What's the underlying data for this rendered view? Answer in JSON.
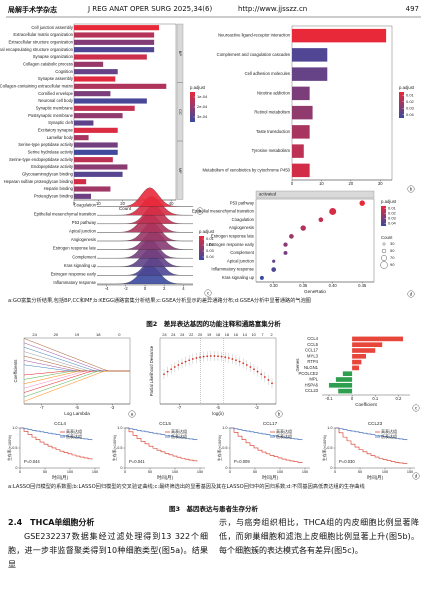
{
  "header": {
    "journal": "局解手术学杂志",
    "meta": "J REG ANAT OPER SURG  2025,34(6)",
    "url": "http://www.jjsszz.cn",
    "page": "497"
  },
  "figure2": {
    "a": {
      "type": "bar",
      "panel": "a",
      "categories": [
        "Cell junction assembly",
        "Extracellular matrix organization",
        "Extracellular structure organization",
        "External encapsulating structure organization",
        "Synapse organization",
        "Collagen catabolic process",
        "Cognition",
        "Synapse assembly",
        "Collagen-containing extracellular matrix",
        "Cornified envelope",
        "Neuronal cell body",
        "Synaptic membrane",
        "Postsynaptic membrane",
        "Synaptic cleft",
        "Excitatory synapse",
        "Lamellar body",
        "Serine-type peptidase activity",
        "Serine hydrolase activity",
        "Serine-type endopeptidase activity",
        "Endopeptidase activity",
        "Glycosaminoglycan binding",
        "Heparan sulfate proteoglycan binding",
        "Heparin binding",
        "Proteoglycan binding"
      ],
      "values": [
        35,
        33,
        33,
        33,
        30,
        12,
        18,
        17,
        38,
        15,
        30,
        25,
        20,
        8,
        18,
        6,
        18,
        18,
        16,
        22,
        20,
        5,
        15,
        7
      ],
      "groups": [
        "BP",
        "CC",
        "MF"
      ],
      "xlabel": "Count",
      "xlim": [
        0,
        42
      ],
      "xticks": [
        0,
        10,
        20,
        30,
        40
      ],
      "legend_title": "p.adjust",
      "legend_ticks": [
        {
          "value": 0.0001,
          "label": "1e-04"
        },
        {
          "value": 0.0002,
          "label": "2e-04"
        },
        {
          "value": 0.0003,
          "label": "3e-04"
        }
      ],
      "color_scale": [
        "#e8293a",
        "#3a4aa0"
      ]
    },
    "b": {
      "type": "bar",
      "panel": "b",
      "categories": [
        "Neuroactive ligand-receptor interaction",
        "Complement and coagulation cascades",
        "Cell adhesion molecules",
        "Nicotine addiction",
        "Retinol metabolism",
        "Taste transduction",
        "Tyrosine metabolism",
        "Metabolism of xenobiotics by cytochrome P450"
      ],
      "values": [
        32,
        12,
        12,
        6,
        7,
        6,
        4,
        6
      ],
      "xlim": [
        0,
        34
      ],
      "xticks": [
        0,
        10,
        20,
        30
      ],
      "legend_title": "p.adjust",
      "legend_ticks": [
        0.01,
        0.02,
        0.03,
        0.04
      ],
      "color_scale": [
        "#e8293a",
        "#3a4aa0"
      ]
    },
    "c": {
      "type": "ridge",
      "panel": "c",
      "categories": [
        "Coagulation",
        "Epithelial mesenchymal transition",
        "P53 pathway",
        "Apical junction",
        "Angiogenesis",
        "Estrogen response late",
        "Complement",
        "Kras signaling up",
        "Estrogen response early",
        "Inflammatory response"
      ],
      "xlim": [
        -5,
        5
      ],
      "xticks": [
        -4,
        -2,
        0,
        2,
        4
      ],
      "legend_title": "p.adjust",
      "legend_ticks": [
        0.01,
        0.02,
        0.03,
        0.04
      ],
      "color_scale": [
        "#e8293a",
        "#3a4aa0"
      ]
    },
    "d": {
      "type": "dot",
      "panel": "d",
      "header": "activated",
      "categories": [
        "P53 pathway",
        "Epithelial mesenchymal transition",
        "Coagulation",
        "Angiogenesis",
        "Estrogen response late",
        "Estrogen response early",
        "Complement",
        "Apical junction",
        "Inflammatory response",
        "Kras signaling up"
      ],
      "values": [
        0.45,
        0.4,
        0.38,
        0.35,
        0.33,
        0.32,
        0.32,
        0.3,
        0.3,
        0.28
      ],
      "counts": [
        70,
        90,
        60,
        70,
        60,
        55,
        50,
        40,
        60,
        50
      ],
      "xlabel": "GeneRatio",
      "xlim": [
        0.27,
        0.47
      ],
      "xticks": [
        {
          "value": 0.3,
          "label": "0.30"
        },
        0.35,
        {
          "value": 0.4,
          "label": "0.40"
        },
        0.45
      ],
      "legend_title": "p.adjust",
      "legend_ticks": [
        0.01,
        0.02,
        0.03,
        0.04
      ],
      "size_title": "Count",
      "size_ticks": [
        30,
        50,
        70,
        90
      ],
      "color_scale": [
        "#e8293a",
        "#3a4aa0"
      ]
    },
    "note": "a:GO富集分析结果,包括BP,CC和MF;b:KEGG通路富集分析结果;c:GSEA分析显示的差异通路分布;d:GSEA分析中显著通路的气泡图",
    "caption": "图2　差异表达基因的功能注释和通路富集分析"
  },
  "figure3": {
    "a": {
      "type": "lasso",
      "panel": "a",
      "top_labels": [
        24,
        20,
        19,
        18,
        0
      ],
      "xlabel": "Log Lambda",
      "ylabel": "Coefficients",
      "xlim": [
        -8,
        -2
      ],
      "xticks": [
        -7,
        -5,
        -3
      ]
    },
    "b": {
      "type": "cv",
      "panel": "b",
      "top_labels": [
        24,
        24,
        24,
        22,
        20,
        19,
        18,
        18,
        16,
        14,
        10,
        7,
        2
      ],
      "xlabel": "log(λ)",
      "ylabel": "Partial Likelihood Deviance",
      "xlim": [
        -8,
        -2
      ],
      "xticks": [
        -7,
        -5,
        -3
      ]
    },
    "c": {
      "type": "coef",
      "panel": "c",
      "categories": [
        "CCL4",
        "CCL5",
        "CCL17",
        "MYL3",
        "RTP4",
        "NLGN1",
        "PCOLCE2",
        "MPL",
        "HSPA6",
        "CCL23"
      ],
      "values": [
        0.22,
        0.13,
        0.1,
        0.06,
        0.04,
        0.03,
        -0.04,
        -0.07,
        -0.1,
        -0.06
      ],
      "xlabel": "Coefficient",
      "ylabel": "Genes",
      "xlim": [
        -0.13,
        0.25
      ],
      "xticks": [
        -0.1,
        0,
        0.1,
        0.2
      ],
      "color_positive": "#e8463a",
      "color_negative": "#2e9e4f"
    },
    "d": {
      "type": "km",
      "panel": "d",
      "plots": [
        {
          "gene": "CCL4",
          "p": "P=0.044"
        },
        {
          "gene": "CCL5",
          "p": "P=0.041"
        },
        {
          "gene": "CCL17",
          "p": "P=0.009"
        },
        {
          "gene": "CCL23",
          "p": "P=0.030"
        }
      ],
      "legend": [
        "高表达组",
        "低表达组"
      ],
      "colors": [
        "#d7301f",
        "#2b5fb0"
      ],
      "xlabel": "时间(月)",
      "ylabel": "生存率(×100%)",
      "xlim": [
        0,
        160
      ],
      "xticks": [
        0,
        50,
        100,
        150
      ],
      "ylim": [
        0,
        1
      ],
      "yticks": [
        0,
        0.5,
        {
          "value": 1,
          "label": "1.0"
        }
      ]
    },
    "note": "a:LASSO回归模型的系数图;b:LASSO回归模型的交叉验证曲线;c:最终筛选出的显著基因及其在LASSO回归中的回归系数;d:不同基因高低表达组的生存曲线",
    "caption": "图3　基因表达与患者生存分析"
  },
  "body": {
    "section": "2.4　THCA单细胞分析",
    "left": "GSE232237数据集经过滤处理得到13 322个细胞，进一步非监督聚类得到10种细胞类型(图5a)。结果显",
    "right": "示，与癌旁组织相比，THCA组的内皮细胞比例显著降低，而卵巢细胞和滤泡上皮细胞比例显著上升(图5b)。每个细胞簇的表达模式各有差异(图5c)。"
  }
}
